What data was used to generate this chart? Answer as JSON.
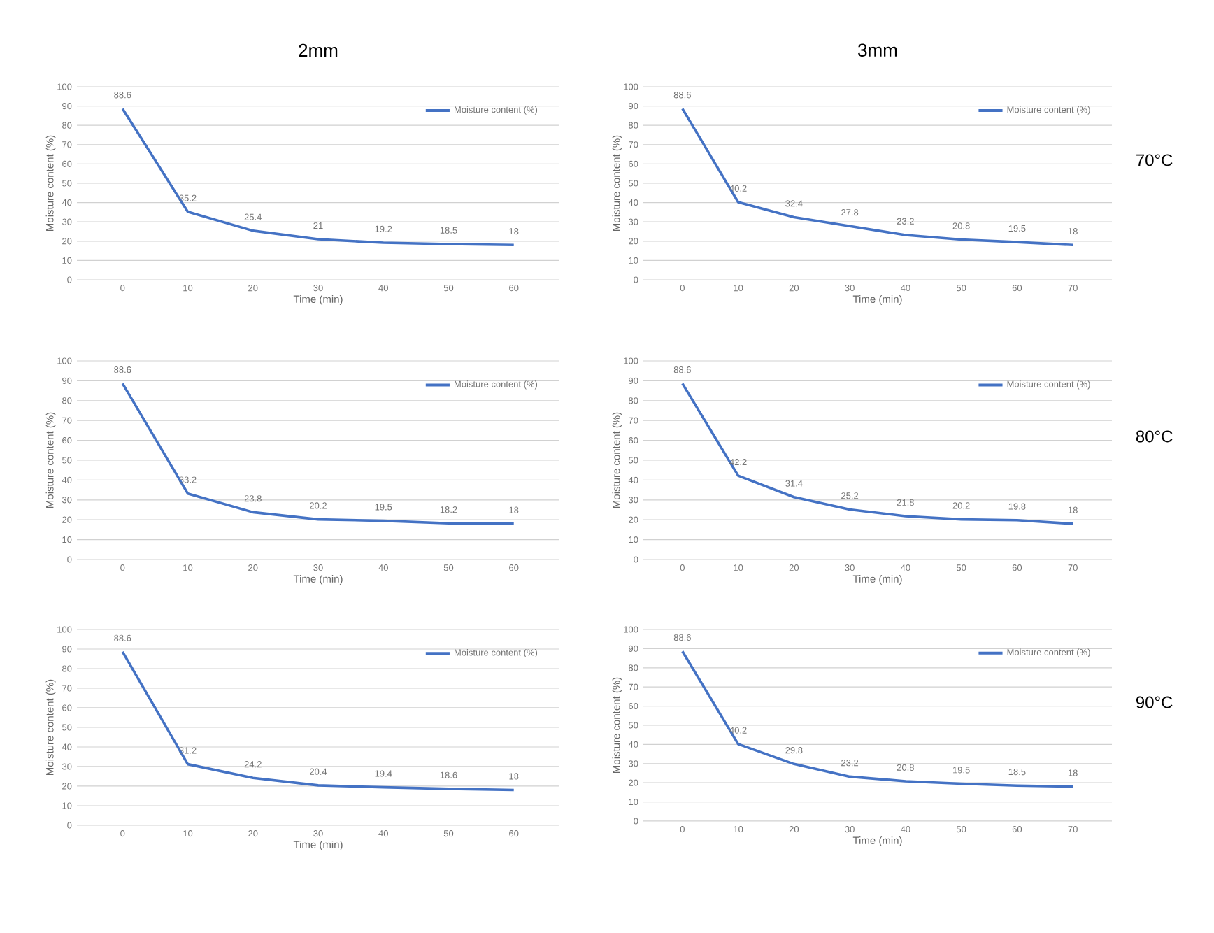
{
  "chart_data": [
    {
      "type": "line",
      "title": "2mm",
      "xlabel": "Time (min)",
      "ylabel": "Moisture content (%)",
      "categories": [
        "0",
        "10",
        "20",
        "30",
        "40",
        "50",
        "60"
      ],
      "series": [
        {
          "name": "Moisture content (%)",
          "color": "#4472c4",
          "values": [
            88.6,
            35.2,
            25.4,
            21,
            19.2,
            18.5,
            18
          ]
        }
      ],
      "ylim": [
        0,
        100
      ],
      "yticks": [
        0,
        10,
        20,
        30,
        40,
        50,
        60,
        70,
        80,
        90,
        100
      ],
      "grid": "y",
      "legend": "top right",
      "data_labels": true
    },
    {
      "type": "line",
      "title": "3mm",
      "xlabel": "Time (min)",
      "ylabel": "Moisture content (%)",
      "annotations": [
        "70°C"
      ],
      "categories": [
        "0",
        "10",
        "20",
        "30",
        "40",
        "50",
        "60",
        "70"
      ],
      "series": [
        {
          "name": "Moisture content (%)",
          "color": "#4472c4",
          "values": [
            88.6,
            40.2,
            32.4,
            27.8,
            23.2,
            20.8,
            19.5,
            18
          ]
        }
      ],
      "ylim": [
        0,
        100
      ],
      "yticks": [
        0,
        10,
        20,
        30,
        40,
        50,
        60,
        70,
        80,
        90,
        100
      ],
      "grid": "y",
      "legend": "top right",
      "data_labels": true
    },
    {
      "type": "line",
      "xlabel": "Time (min)",
      "ylabel": "Moisture content (%)",
      "categories": [
        "0",
        "10",
        "20",
        "30",
        "40",
        "50",
        "60"
      ],
      "series": [
        {
          "name": "Moisture content (%)",
          "color": "#4472c4",
          "values": [
            88.6,
            33.2,
            23.8,
            20.2,
            19.5,
            18.2,
            18
          ]
        }
      ],
      "ylim": [
        0,
        100
      ],
      "yticks": [
        0,
        10,
        20,
        30,
        40,
        50,
        60,
        70,
        80,
        90,
        100
      ],
      "grid": "y",
      "legend": "top right",
      "data_labels": true
    },
    {
      "type": "line",
      "xlabel": "Time (min)",
      "ylabel": "Moisture content (%)",
      "annotations": [
        "80°C"
      ],
      "categories": [
        "0",
        "10",
        "20",
        "30",
        "40",
        "50",
        "60",
        "70"
      ],
      "series": [
        {
          "name": "Moisture content (%)",
          "color": "#4472c4",
          "values": [
            88.6,
            42.2,
            31.4,
            25.2,
            21.8,
            20.2,
            19.8,
            18
          ]
        }
      ],
      "ylim": [
        0,
        100
      ],
      "yticks": [
        0,
        10,
        20,
        30,
        40,
        50,
        60,
        70,
        80,
        90,
        100
      ],
      "grid": "y",
      "legend": "top right",
      "data_labels": true
    },
    {
      "type": "line",
      "xlabel": "Time (min)",
      "ylabel": "Moisture content (%)",
      "categories": [
        "0",
        "10",
        "20",
        "30",
        "40",
        "50",
        "60"
      ],
      "series": [
        {
          "name": "Moisture content (%)",
          "color": "#4472c4",
          "values": [
            88.6,
            31.2,
            24.2,
            20.4,
            19.4,
            18.6,
            18
          ]
        }
      ],
      "ylim": [
        0,
        100
      ],
      "yticks": [
        0,
        10,
        20,
        30,
        40,
        50,
        60,
        70,
        80,
        90,
        100
      ],
      "grid": "y",
      "legend": "top right",
      "data_labels": true
    },
    {
      "type": "line",
      "xlabel": "Time (min)",
      "ylabel": "Moisture content (%)",
      "annotations": [
        "90°C"
      ],
      "categories": [
        "0",
        "10",
        "20",
        "30",
        "40",
        "50",
        "60",
        "70"
      ],
      "series": [
        {
          "name": "Moisture content (%)",
          "color": "#4472c4",
          "values": [
            88.6,
            40.2,
            29.8,
            23.2,
            20.8,
            19.5,
            18.5,
            18
          ]
        }
      ],
      "ylim": [
        0,
        100
      ],
      "yticks": [
        0,
        10,
        20,
        30,
        40,
        50,
        60,
        70,
        80,
        90,
        100
      ],
      "grid": "y",
      "legend": "top right",
      "data_labels": true
    }
  ]
}
